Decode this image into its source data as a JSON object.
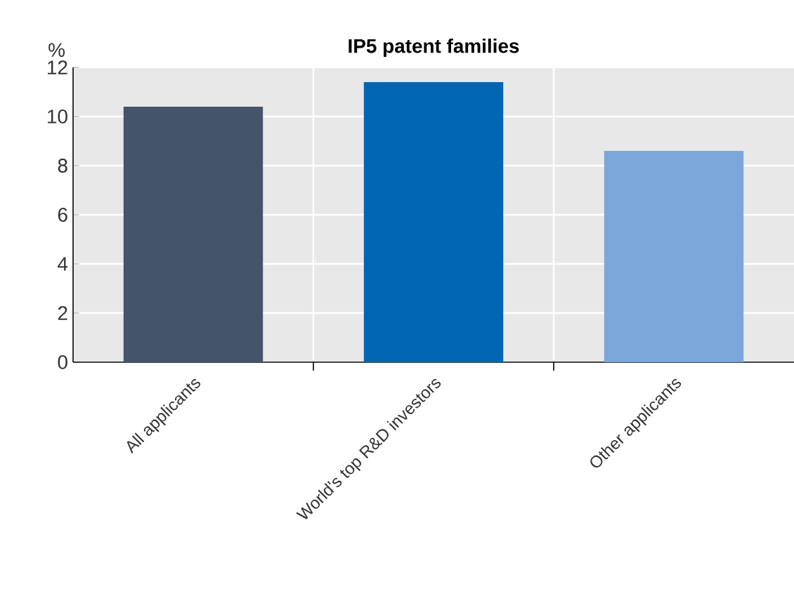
{
  "chart_data": {
    "type": "bar",
    "title": "IP5 patent families",
    "ylabel": "%",
    "categories": [
      "All applicants",
      "World's top R&D investors",
      "Other applicants"
    ],
    "values": [
      10.4,
      11.4,
      8.6
    ],
    "colors": [
      "#44546a",
      "#0066b3",
      "#7ba6d9"
    ],
    "ylim": [
      0,
      12
    ],
    "yticks": [
      0,
      2,
      4,
      6,
      8,
      10,
      12
    ],
    "grid": true
  }
}
